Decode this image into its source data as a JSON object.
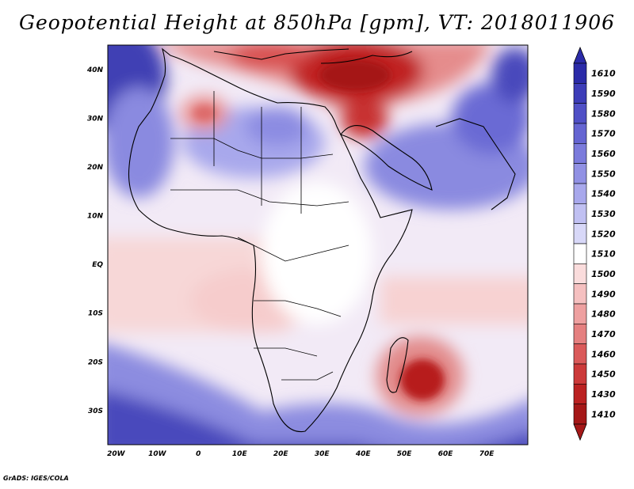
{
  "title": "Geopotential Height at 850hPa [gpm], VT: 2018011906",
  "credit": "GrADS: IGES/COLA",
  "map": {
    "lon_labels": [
      "20W",
      "10W",
      "0",
      "10E",
      "20E",
      "30E",
      "40E",
      "50E",
      "60E",
      "70E"
    ],
    "lat_labels": [
      "40N",
      "30N",
      "20N",
      "10N",
      "EQ",
      "10S",
      "20S",
      "30S"
    ],
    "lon_range": [
      -22,
      80
    ],
    "lat_range": [
      -37,
      45
    ]
  },
  "colorbar": {
    "levels": [
      "1610",
      "1590",
      "1580",
      "1570",
      "1560",
      "1550",
      "1540",
      "1530",
      "1520",
      "1510",
      "1500",
      "1490",
      "1480",
      "1470",
      "1460",
      "1450",
      "1430",
      "1410"
    ],
    "colors": [
      "#2b2ba8",
      "#3d3db8",
      "#5050c6",
      "#6565d2",
      "#7b7bdc",
      "#9191e4",
      "#a8a8ec",
      "#c0c0f2",
      "#d8d8f8",
      "#ffffff",
      "#fadcdc",
      "#f5c0c0",
      "#eea0a0",
      "#e58080",
      "#da5a5a",
      "#cc3a3a",
      "#bb2222",
      "#a51818"
    ]
  },
  "colors": {
    "ocean_low": "#3a3ab4",
    "high_center": "#b71c1c"
  }
}
